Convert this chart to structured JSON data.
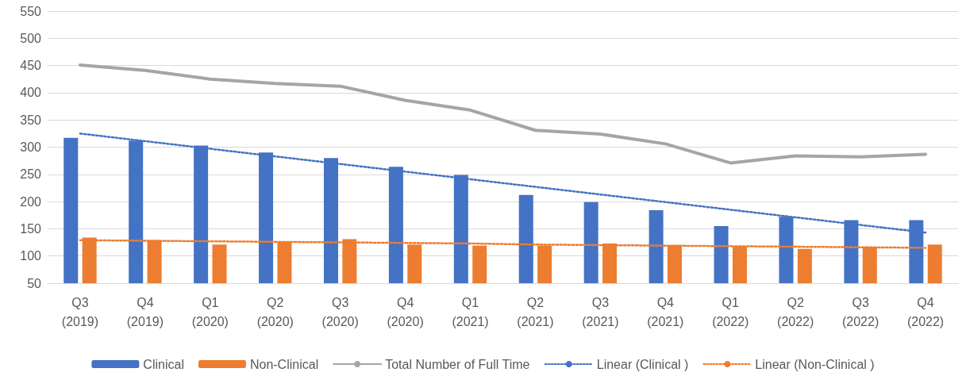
{
  "chart_data": {
    "type": "bar",
    "categories": [
      "Q3\n(2019)",
      "Q4\n(2019)",
      "Q1\n(2020)",
      "Q2\n(2020)",
      "Q3\n(2020)",
      "Q4\n(2020)",
      "Q1\n(2021)",
      "Q2\n(2021)",
      "Q3\n(2021)",
      "Q4\n(2021)",
      "Q1\n(2022)",
      "Q2\n(2022)",
      "Q3\n(2022)",
      "Q4\n(2022)"
    ],
    "series": [
      {
        "name": "Clinical",
        "color": "#4472c4",
        "values": [
          317,
          312,
          303,
          290,
          280,
          264,
          249,
          212,
          199,
          184,
          155,
          172,
          166,
          166
        ]
      },
      {
        "name": "Non-Clinical",
        "color": "#ed7d31",
        "values": [
          134,
          129,
          121,
          126,
          131,
          121,
          119,
          119,
          123,
          120,
          117,
          113,
          117,
          121
        ]
      },
      {
        "name": "Total Number of Full Time",
        "type": "line",
        "color": "#a5a5a5",
        "line_style": "solid",
        "values": [
          451,
          441,
          425,
          417,
          412,
          386,
          368,
          331,
          324,
          306,
          271,
          284,
          282,
          287
        ]
      },
      {
        "name": "Linear (Clinical )",
        "type": "line",
        "color": "#4472c4",
        "line_style": "dotted",
        "values": [
          325,
          311,
          297,
          283,
          269,
          255,
          241,
          227,
          213,
          199,
          185,
          171,
          157,
          143
        ]
      },
      {
        "name": "Linear (Non-Clinical )",
        "type": "line",
        "color": "#ed7d31",
        "line_style": "dotted",
        "values": [
          129,
          128,
          127,
          126,
          125,
          124,
          123,
          121,
          120,
          119,
          118,
          117,
          116,
          115
        ]
      }
    ],
    "ylim": [
      50,
      550
    ],
    "yticks": [
      50,
      100,
      150,
      200,
      250,
      300,
      350,
      400,
      450,
      500,
      550
    ],
    "grid": "y",
    "legend": "bottom",
    "marker": "none"
  }
}
